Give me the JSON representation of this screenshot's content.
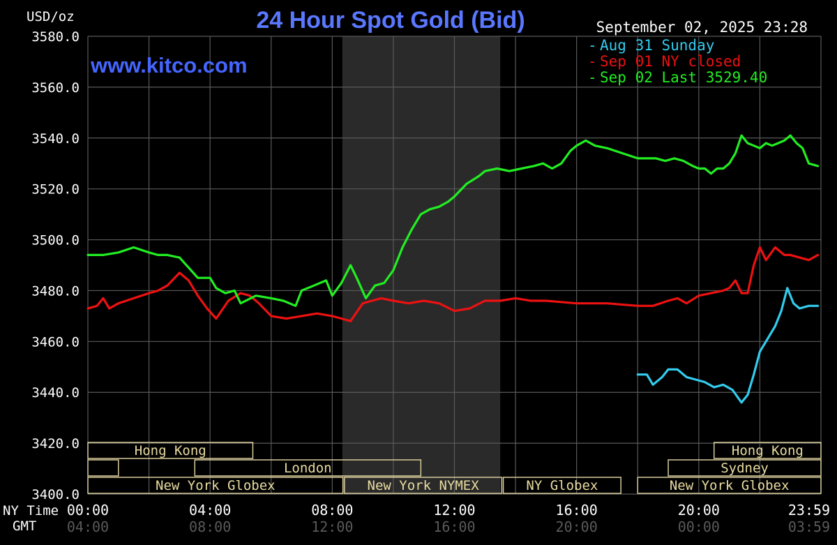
{
  "title": "24 Hour Spot Gold (Bid)",
  "unit_label": "USD/oz",
  "watermark": "www.kitco.com",
  "timestamp": "September 02, 2025 23:28",
  "legend": [
    {
      "label": "Aug 31 Sunday",
      "color": "#33ccee"
    },
    {
      "label": "Sep 01 NY closed",
      "color": "#ee1111"
    },
    {
      "label": "Sep 02 Last 3529.40",
      "color": "#22ee22"
    }
  ],
  "time_axis": {
    "ny_label": "NY Time",
    "gmt_label": "GMT",
    "ny_ticks": [
      "00:00",
      "04:00",
      "08:00",
      "12:00",
      "16:00",
      "20:00",
      "23:59"
    ],
    "gmt_ticks": [
      "04:00",
      "08:00",
      "12:00",
      "16:00",
      "20:00",
      "00:00",
      "03:59"
    ]
  },
  "y_ticks": [
    "3580.0",
    "3560.0",
    "3540.0",
    "3520.0",
    "3500.0",
    "3480.0",
    "3460.0",
    "3440.0",
    "3420.0",
    "3400.0"
  ],
  "sessions": [
    {
      "label": "Hong Kong",
      "row": 0,
      "start": 0,
      "end": 5.4
    },
    {
      "label": "Hong Kong",
      "row": 0,
      "start": 20.5,
      "end": 24
    },
    {
      "label": "",
      "row": 1,
      "start": 0,
      "end": 1
    },
    {
      "label": "London",
      "row": 1,
      "start": 3.5,
      "end": 10.9
    },
    {
      "label": "Sydney",
      "row": 1,
      "start": 19,
      "end": 24
    },
    {
      "label": "New York Globex",
      "row": 2,
      "start": 0,
      "end": 8.35
    },
    {
      "label": "New York NYMEX",
      "row": 2,
      "start": 8.4,
      "end": 13.55
    },
    {
      "label": "NY Globex",
      "row": 2,
      "start": 13.6,
      "end": 17.45
    },
    {
      "label": "New York Globex",
      "row": 2,
      "start": 18,
      "end": 24
    }
  ],
  "chart_data": {
    "type": "line",
    "title": "24 Hour Spot Gold (Bid)",
    "ylabel": "USD/oz",
    "xlabel": "NY Time",
    "ylim": [
      3400,
      3580
    ],
    "xlim_hours": [
      0,
      24
    ],
    "nymex_shaded_hours": [
      8.33,
      13.5
    ],
    "grid": true,
    "legend_position": "top-right",
    "series": [
      {
        "name": "Aug 31 Sunday",
        "color": "#33ccee",
        "x": [
          18.0,
          18.3,
          18.5,
          18.8,
          19.0,
          19.3,
          19.6,
          19.9,
          20.2,
          20.5,
          20.8,
          21.1,
          21.4,
          21.6,
          21.8,
          22.0,
          22.2,
          22.5,
          22.7,
          22.9,
          23.1,
          23.3,
          23.6,
          23.9
        ],
        "y": [
          3447,
          3447,
          3443,
          3446,
          3449,
          3449,
          3446,
          3445,
          3444,
          3442,
          3443,
          3441,
          3436,
          3439,
          3447,
          3456,
          3460,
          3466,
          3472,
          3481,
          3475,
          3473,
          3474,
          3474
        ]
      },
      {
        "name": "Sep 01 NY closed",
        "color": "#ee1111",
        "x": [
          0.0,
          0.3,
          0.5,
          0.7,
          1.0,
          1.5,
          2.0,
          2.3,
          2.6,
          3.0,
          3.3,
          3.6,
          3.9,
          4.2,
          4.6,
          5.0,
          5.3,
          5.6,
          6.0,
          6.5,
          7.0,
          7.5,
          8.0,
          8.3,
          8.6,
          9.0,
          9.3,
          9.6,
          10.0,
          10.5,
          11.0,
          11.5,
          12.0,
          12.5,
          13.0,
          13.5,
          14.0,
          14.5,
          15.0,
          16.0,
          17.0,
          18.0,
          18.5,
          19.0,
          19.3,
          19.6,
          20.0,
          20.4,
          20.8,
          21.0,
          21.2,
          21.4,
          21.6,
          21.8,
          22.0,
          22.2,
          22.5,
          22.8,
          23.0,
          23.3,
          23.6,
          23.9
        ],
        "y": [
          3473,
          3474,
          3477,
          3473,
          3475,
          3477,
          3479,
          3480,
          3482,
          3487,
          3484,
          3478,
          3473,
          3469,
          3476,
          3479,
          3478,
          3475,
          3470,
          3469,
          3470,
          3471,
          3470,
          3469,
          3468,
          3475,
          3476,
          3477,
          3476,
          3475,
          3476,
          3475,
          3472,
          3473,
          3476,
          3476,
          3477,
          3476,
          3476,
          3475,
          3475,
          3474,
          3474,
          3476,
          3477,
          3475,
          3478,
          3479,
          3480,
          3481,
          3484,
          3479,
          3479,
          3490,
          3497,
          3492,
          3497,
          3494,
          3494,
          3493,
          3492,
          3494
        ]
      },
      {
        "name": "Sep 02 Last 3529.40",
        "color": "#22ee22",
        "x": [
          0.0,
          0.5,
          1.0,
          1.5,
          2.0,
          2.3,
          2.6,
          3.0,
          3.3,
          3.6,
          4.0,
          4.2,
          4.5,
          4.8,
          5.0,
          5.5,
          6.0,
          6.4,
          6.8,
          7.0,
          7.4,
          7.8,
          8.0,
          8.3,
          8.6,
          8.8,
          9.1,
          9.4,
          9.7,
          10.0,
          10.3,
          10.6,
          10.9,
          11.2,
          11.5,
          11.8,
          12.0,
          12.4,
          12.8,
          13.0,
          13.4,
          13.8,
          14.2,
          14.6,
          14.9,
          15.2,
          15.5,
          15.8,
          16.0,
          16.3,
          16.6,
          17.0,
          17.5,
          18.0,
          18.3,
          18.6,
          18.9,
          19.2,
          19.5,
          19.8,
          20.0,
          20.2,
          20.4,
          20.6,
          20.8,
          21.0,
          21.2,
          21.4,
          21.6,
          21.8,
          22.0,
          22.2,
          22.4,
          22.6,
          22.8,
          23.0,
          23.2,
          23.4,
          23.6,
          23.9
        ],
        "y": [
          3494,
          3494,
          3495,
          3497,
          3495,
          3494,
          3494,
          3493,
          3489,
          3485,
          3485,
          3481,
          3479,
          3480,
          3475,
          3478,
          3477,
          3476,
          3474,
          3480,
          3482,
          3484,
          3478,
          3483,
          3490,
          3485,
          3477,
          3482,
          3483,
          3488,
          3497,
          3504,
          3510,
          3512,
          3513,
          3515,
          3517,
          3522,
          3525,
          3527,
          3528,
          3527,
          3528,
          3529,
          3530,
          3528,
          3530,
          3535,
          3537,
          3539,
          3537,
          3536,
          3534,
          3532,
          3532,
          3532,
          3531,
          3532,
          3531,
          3529,
          3528,
          3528,
          3526,
          3528,
          3528,
          3530,
          3534,
          3541,
          3538,
          3537,
          3536,
          3538,
          3537,
          3538,
          3539,
          3541,
          3538,
          3536,
          3530,
          3529
        ]
      }
    ]
  }
}
